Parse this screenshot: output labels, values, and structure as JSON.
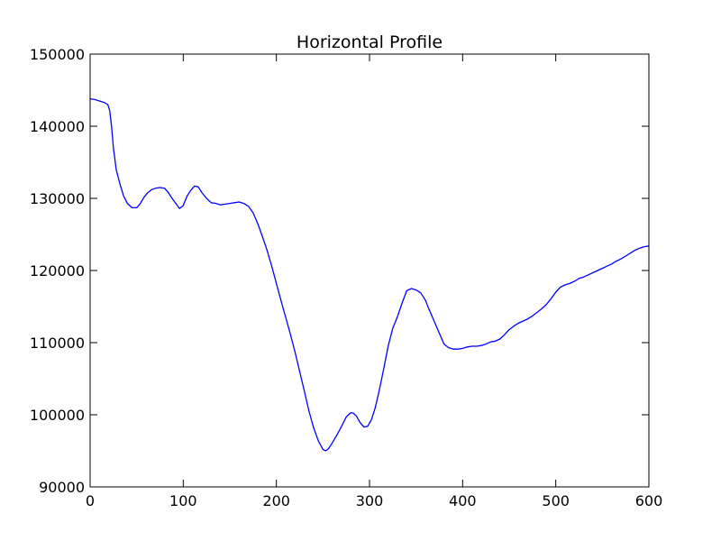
{
  "chart_data": {
    "type": "line",
    "title": "Horizontal Profile",
    "xlabel": "",
    "ylabel": "",
    "xlim": [
      0,
      600
    ],
    "ylim": [
      90000,
      150000
    ],
    "x_ticks": [
      0,
      100,
      200,
      300,
      400,
      500,
      600
    ],
    "y_ticks": [
      90000,
      100000,
      110000,
      120000,
      130000,
      140000,
      150000
    ],
    "x_tick_labels": [
      "0",
      "100",
      "200",
      "300",
      "400",
      "500",
      "600"
    ],
    "y_tick_labels": [
      "90000",
      "100000",
      "110000",
      "120000",
      "130000",
      "140000",
      "150000"
    ],
    "grid": false,
    "legend": "none",
    "series": [
      {
        "color": "#0000ff",
        "x": [
          0,
          5,
          10,
          15,
          19,
          21,
          23,
          25,
          28,
          32,
          36,
          40,
          45,
          50,
          54,
          58,
          62,
          66,
          70,
          75,
          80,
          84,
          88,
          92,
          96,
          100,
          104,
          108,
          112,
          116,
          120,
          125,
          130,
          135,
          140,
          145,
          150,
          155,
          160,
          165,
          170,
          175,
          180,
          185,
          190,
          195,
          200,
          205,
          210,
          215,
          220,
          225,
          230,
          235,
          240,
          245,
          250,
          253,
          256,
          260,
          265,
          270,
          275,
          280,
          283,
          286,
          290,
          294,
          298,
          302,
          306,
          310,
          315,
          320,
          325,
          330,
          335,
          340,
          345,
          350,
          355,
          360,
          363,
          366,
          370,
          375,
          380,
          385,
          390,
          395,
          400,
          405,
          410,
          415,
          420,
          425,
          430,
          435,
          440,
          445,
          450,
          455,
          460,
          465,
          470,
          475,
          480,
          485,
          490,
          495,
          500,
          505,
          510,
          515,
          520,
          525,
          530,
          535,
          540,
          545,
          550,
          555,
          560,
          565,
          570,
          575,
          580,
          585,
          590,
          595,
          600
        ],
        "y": [
          143800,
          143700,
          143500,
          143300,
          143000,
          142200,
          140000,
          137000,
          134000,
          132000,
          130300,
          129300,
          128700,
          128700,
          129300,
          130200,
          130800,
          131200,
          131400,
          131500,
          131400,
          130800,
          130000,
          129300,
          128600,
          129000,
          130300,
          131100,
          131700,
          131600,
          130800,
          130000,
          129400,
          129300,
          129100,
          129200,
          129300,
          129400,
          129500,
          129300,
          128900,
          128000,
          126500,
          124700,
          122800,
          120600,
          118200,
          115800,
          113500,
          111200,
          108700,
          106000,
          103300,
          100500,
          98200,
          96400,
          95200,
          95000,
          95300,
          96100,
          97200,
          98400,
          99700,
          100300,
          100200,
          99800,
          98900,
          98300,
          98400,
          99300,
          100900,
          103100,
          106200,
          109500,
          112000,
          113600,
          115500,
          117200,
          117500,
          117300,
          116900,
          115900,
          114900,
          114000,
          112800,
          111300,
          109800,
          109300,
          109100,
          109100,
          109200,
          109400,
          109500,
          109500,
          109600,
          109800,
          110100,
          110200,
          110500,
          111100,
          111800,
          112300,
          112700,
          113000,
          113300,
          113700,
          114200,
          114700,
          115300,
          116100,
          117000,
          117700,
          118000,
          118200,
          118500,
          118900,
          119100,
          119400,
          119700,
          120000,
          120300,
          120600,
          120900,
          121300,
          121600,
          122000,
          122400,
          122800,
          123100,
          123300,
          123400
        ]
      }
    ]
  }
}
